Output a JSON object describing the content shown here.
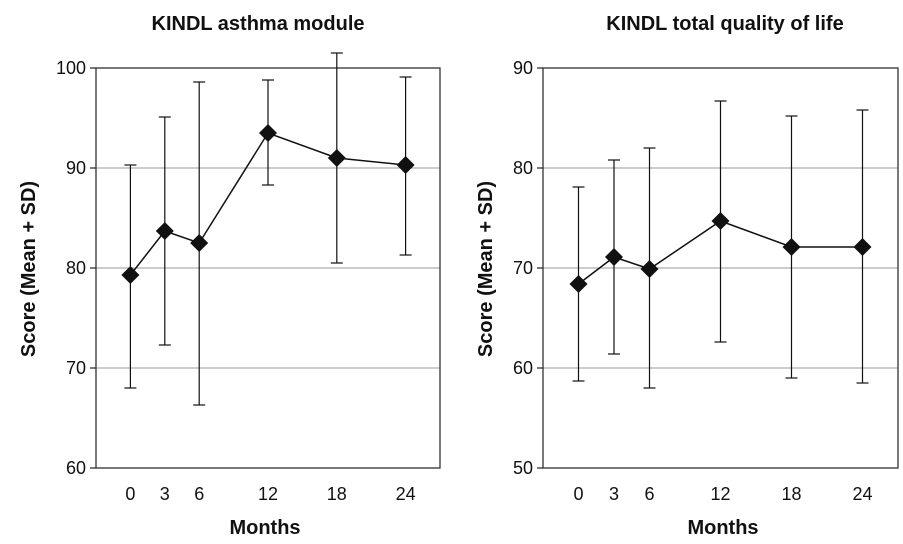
{
  "chart_data": [
    {
      "type": "line",
      "title": "KINDL asthma module",
      "xlabel": "Months",
      "ylabel": "Score (Mean + SD)",
      "ylim": [
        60,
        100
      ],
      "yticks": [
        60,
        70,
        80,
        90,
        100
      ],
      "xticks": [
        0,
        3,
        6,
        12,
        18,
        24
      ],
      "xlim": [
        -3,
        27
      ],
      "grid": "horizontal",
      "series": [
        {
          "x": [
            0,
            3,
            6,
            12,
            18,
            24
          ],
          "values": [
            79.3,
            83.7,
            82.5,
            93.5,
            91.0,
            90.3
          ],
          "lower": [
            68.0,
            72.3,
            66.3,
            88.3,
            80.5,
            81.3
          ],
          "upper": [
            90.3,
            95.1,
            98.6,
            98.8,
            101.5,
            99.1
          ]
        }
      ]
    },
    {
      "type": "line",
      "title": "KINDL total quality of life",
      "xlabel": "Months",
      "ylabel": "Score (Mean + SD)",
      "ylim": [
        50,
        90
      ],
      "yticks": [
        50,
        60,
        70,
        80,
        90
      ],
      "xticks": [
        0,
        3,
        6,
        12,
        18,
        24
      ],
      "xlim": [
        -3,
        27
      ],
      "grid": "horizontal",
      "series": [
        {
          "x": [
            0,
            3,
            6,
            12,
            18,
            24
          ],
          "values": [
            68.4,
            71.1,
            69.9,
            74.7,
            72.1,
            72.1
          ],
          "lower": [
            58.7,
            61.4,
            58.0,
            62.6,
            59.0,
            58.5
          ],
          "upper": [
            78.1,
            80.8,
            82.0,
            86.7,
            85.2,
            85.8
          ]
        }
      ]
    }
  ]
}
